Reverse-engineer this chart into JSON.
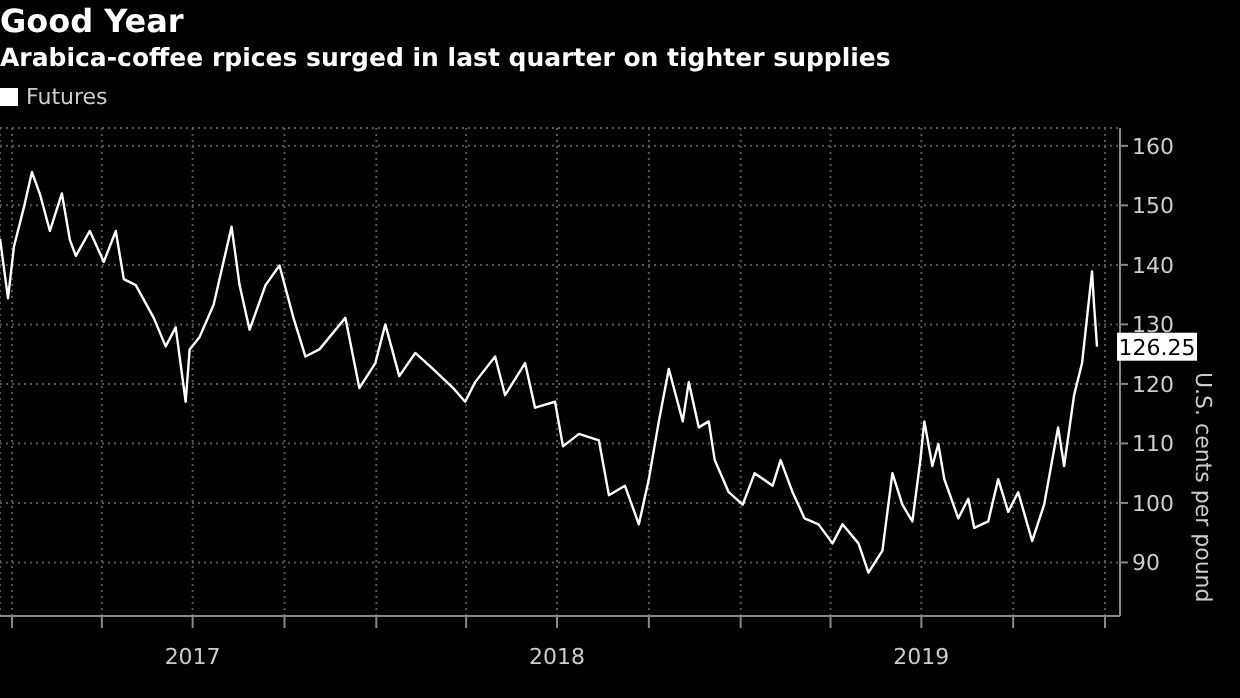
{
  "chart_data": {
    "type": "line",
    "title": "Good Year",
    "subtitle": "Arabica-coffee rpices surged in last quarter on tighter supplies",
    "ylabel": "U.S. cents per pound",
    "x": [
      "2016-12-20",
      "2016-12-28",
      "2017-01-03",
      "2017-01-13",
      "2017-01-21",
      "2017-01-29",
      "2017-02-08",
      "2017-02-20",
      "2017-02-28",
      "2017-03-06",
      "2017-03-20",
      "2017-04-03",
      "2017-04-15",
      "2017-04-23",
      "2017-05-05",
      "2017-05-23",
      "2017-06-04",
      "2017-06-14",
      "2017-06-24",
      "2017-06-28",
      "2017-07-08",
      "2017-07-22",
      "2017-08-09",
      "2017-08-17",
      "2017-08-27",
      "2017-09-12",
      "2017-09-26",
      "2017-10-10",
      "2017-10-22",
      "2017-11-05",
      "2017-12-01",
      "2017-12-15",
      "2017-12-31",
      "2018-01-10",
      "2018-01-24",
      "2018-02-09",
      "2018-02-27",
      "2018-03-19",
      "2018-03-31",
      "2018-04-10",
      "2018-04-30",
      "2018-05-10",
      "2018-05-30",
      "2018-06-09",
      "2018-06-29",
      "2018-07-07",
      "2018-07-23",
      "2018-08-12",
      "2018-08-22",
      "2018-09-07",
      "2018-09-21",
      "2018-10-01",
      "2018-10-11",
      "2018-10-21",
      "2018-11-04",
      "2018-11-10",
      "2018-11-20",
      "2018-11-30",
      "2018-12-06",
      "2018-12-20",
      "2019-01-03",
      "2019-01-15",
      "2019-02-02",
      "2019-02-10",
      "2019-02-22",
      "2019-03-06",
      "2019-03-20",
      "2019-04-03",
      "2019-04-13",
      "2019-04-29",
      "2019-05-09",
      "2019-05-23",
      "2019-06-02",
      "2019-06-12",
      "2019-06-22",
      "2019-06-30",
      "2019-07-04",
      "2019-07-12",
      "2019-07-18",
      "2019-07-24",
      "2019-08-07",
      "2019-08-17",
      "2019-08-23",
      "2019-09-06",
      "2019-09-16",
      "2019-09-26",
      "2019-10-06",
      "2019-10-20",
      "2019-11-01",
      "2019-11-15",
      "2019-11-21",
      "2019-12-01",
      "2019-12-09",
      "2019-12-19",
      "2019-12-21",
      "2019-12-24"
    ],
    "series": [
      {
        "name": "Futures",
        "color": "#ffffff",
        "values": [
          144.4,
          134.4,
          143.1,
          149.7,
          155.6,
          151.9,
          145.7,
          152.0,
          144.2,
          141.5,
          145.7,
          140.5,
          145.7,
          137.6,
          136.6,
          131.1,
          126.3,
          129.5,
          117.0,
          125.8,
          127.9,
          133.3,
          146.4,
          136.6,
          129.1,
          136.6,
          139.9,
          131.1,
          124.6,
          125.8,
          131.1,
          119.3,
          123.5,
          130.0,
          121.3,
          125.2,
          122.5,
          119.3,
          117.0,
          120.3,
          124.6,
          118.1,
          123.5,
          116.0,
          117.0,
          109.5,
          111.6,
          110.5,
          101.3,
          102.9,
          96.4,
          104.0,
          113.7,
          122.5,
          113.7,
          120.3,
          112.7,
          113.7,
          107.2,
          101.8,
          99.7,
          105.0,
          102.9,
          107.2,
          101.8,
          97.4,
          96.4,
          93.2,
          96.4,
          93.2,
          88.3,
          92.0,
          105.0,
          99.7,
          96.9,
          107.2,
          113.7,
          106.2,
          109.9,
          104.0,
          97.4,
          100.7,
          95.8,
          96.9,
          104.0,
          98.5,
          101.8,
          93.6,
          99.7,
          112.7,
          106.2,
          118.1,
          123.5,
          138.9,
          133.3,
          126.25
        ]
      }
    ],
    "xlim": [
      "2016-12-20",
      "2020-01-16"
    ],
    "xticks": [
      {
        "value": "2017-01-01",
        "label": null
      },
      {
        "value": "2017-04-01",
        "label": null
      },
      {
        "value": "2017-07-01",
        "label": "2017"
      },
      {
        "value": "2017-10-01",
        "label": null
      },
      {
        "value": "2018-01-01",
        "label": null
      },
      {
        "value": "2018-04-01",
        "label": null
      },
      {
        "value": "2018-07-01",
        "label": "2018"
      },
      {
        "value": "2018-10-01",
        "label": null
      },
      {
        "value": "2019-01-01",
        "label": null
      },
      {
        "value": "2019-04-01",
        "label": null
      },
      {
        "value": "2019-07-01",
        "label": "2019"
      },
      {
        "value": "2019-10-01",
        "label": null
      },
      {
        "value": "2020-01-01",
        "label": null
      }
    ],
    "ylim": [
      81,
      163
    ],
    "yticks": [
      90,
      100,
      110,
      120,
      130,
      140,
      150,
      160
    ],
    "annotations": [
      {
        "text": "126.25",
        "x": "2019-12-24",
        "y": 126.25
      }
    ],
    "grid": true,
    "legend": "top left",
    "marker": "none",
    "line_style": "solid"
  }
}
